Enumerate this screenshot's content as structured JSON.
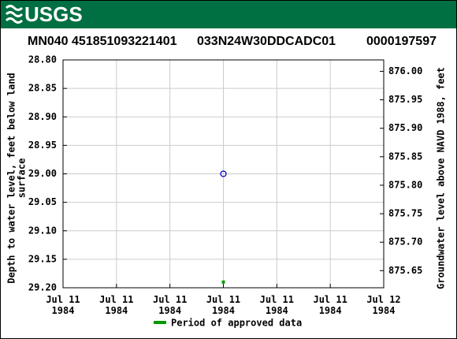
{
  "header": {
    "logo": "USGS"
  },
  "chart_data": {
    "type": "scatter",
    "title": [
      "MN040 451851093221401",
      "033N24W30DDCADC01",
      "0000197597"
    ],
    "ylabel": [
      "Depth to water level, feet below land",
      "surface"
    ],
    "y2label": "Groundwater level above NAVD 1988, feet",
    "categories": [
      "Jul 11\n1984",
      "Jul 11\n1984",
      "Jul 11\n1984",
      "Jul 11\n1984",
      "Jul 11\n1984",
      "Jul 11\n1984",
      "Jul 12\n1984"
    ],
    "values": [
      null,
      null,
      null,
      29.0,
      null,
      null,
      null
    ],
    "marker_color": "#0000cc",
    "series": [
      {
        "name": "Period of approved data",
        "color": "#009900",
        "values": [
          null,
          null,
          null,
          29.19,
          null,
          null,
          null
        ]
      }
    ],
    "ylim": [
      28.8,
      29.2
    ],
    "yticks": [
      {
        "value": 28.8,
        "label": "28.80"
      },
      {
        "value": 28.85,
        "label": "28.85"
      },
      {
        "value": 28.9,
        "label": "28.90"
      },
      {
        "value": 28.95,
        "label": "28.95"
      },
      {
        "value": 29.0,
        "label": "29.00"
      },
      {
        "value": 29.05,
        "label": "29.05"
      },
      {
        "value": 29.1,
        "label": "29.10"
      },
      {
        "value": 29.15,
        "label": "29.15"
      },
      {
        "value": 29.2,
        "label": "29.20"
      }
    ],
    "y2lim": [
      876.02,
      875.62
    ],
    "y2ticks": [
      {
        "value": 876.0,
        "label": "876.00"
      },
      {
        "value": 875.95,
        "label": "875.95"
      },
      {
        "value": 875.9,
        "label": "875.90"
      },
      {
        "value": 875.85,
        "label": "875.85"
      },
      {
        "value": 875.8,
        "label": "875.80"
      },
      {
        "value": 875.75,
        "label": "875.75"
      },
      {
        "value": 875.7,
        "label": "875.70"
      },
      {
        "value": 875.65,
        "label": "875.65"
      }
    ],
    "grid": true
  }
}
